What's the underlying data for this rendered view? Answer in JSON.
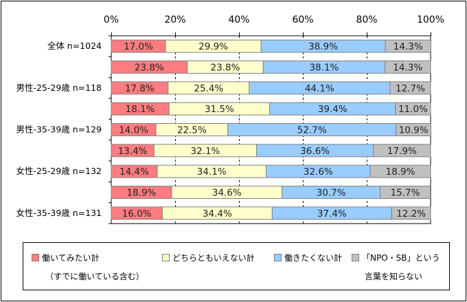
{
  "chart_data": {
    "type": "bar",
    "orientation": "horizontal",
    "stacked": "percent",
    "title": "",
    "xlabel": "",
    "ylabel": "",
    "xlim": [
      0,
      100
    ],
    "x_ticks": [
      "0%",
      "20%",
      "40%",
      "60%",
      "80%",
      "100%"
    ],
    "grid": "vertical dashed at 20%, 40%, 60%, 80%",
    "legend_position": "bottom",
    "categories": [
      "全体 n=1024",
      "",
      "男性-25-29歳 n=118",
      "",
      "男性-35-39歳 n=129",
      "",
      "女性-25-29歳 n=132",
      "",
      "女性-35-39歳 n=131"
    ],
    "series": [
      {
        "name": "働いてみたい計（すでに働いている含む）",
        "legend_line1": "働いてみたい計",
        "legend_line2": "（すでに働いている含む）",
        "color": "#FF7C80",
        "values": [
          17.0,
          23.8,
          17.8,
          18.1,
          14.0,
          13.4,
          14.4,
          18.9,
          16.0
        ],
        "labels": [
          "17.0%",
          "23.8%",
          "17.8%",
          "18.1%",
          "14.0%",
          "13.4%",
          "14.4%",
          "18.9%",
          "16.0%"
        ]
      },
      {
        "name": "どちらともいえない計",
        "legend_line1": "どちらともいえない計",
        "legend_line2": "",
        "color": "#FFFFCC",
        "values": [
          29.9,
          23.8,
          25.4,
          31.5,
          22.5,
          32.1,
          34.1,
          34.6,
          34.4
        ],
        "labels": [
          "29.9%",
          "23.8%",
          "25.4%",
          "31.5%",
          "22.5%",
          "32.1%",
          "34.1%",
          "34.6%",
          "34.4%"
        ]
      },
      {
        "name": "働きたくない計",
        "legend_line1": "働きたくない計",
        "legend_line2": "",
        "color": "#99CCFF",
        "values": [
          38.9,
          38.1,
          44.1,
          39.4,
          52.7,
          36.6,
          32.6,
          30.7,
          37.4
        ],
        "labels": [
          "38.9%",
          "38.1%",
          "44.1%",
          "39.4%",
          "52.7%",
          "36.6%",
          "32.6%",
          "30.7%",
          "37.4%"
        ]
      },
      {
        "name": "「NPO・SB」という言葉を知らない",
        "legend_line1": "「NPO・SB」という",
        "legend_line2": "言葉を知らない",
        "color": "#C0C0C0",
        "values": [
          14.3,
          14.3,
          12.7,
          11.0,
          10.9,
          17.9,
          18.9,
          15.7,
          12.2
        ],
        "labels": [
          "14.3%",
          "14.3%",
          "12.7%",
          "11.0%",
          "10.9%",
          "17.9%",
          "18.9%",
          "15.7%",
          "12.2%"
        ]
      }
    ]
  }
}
